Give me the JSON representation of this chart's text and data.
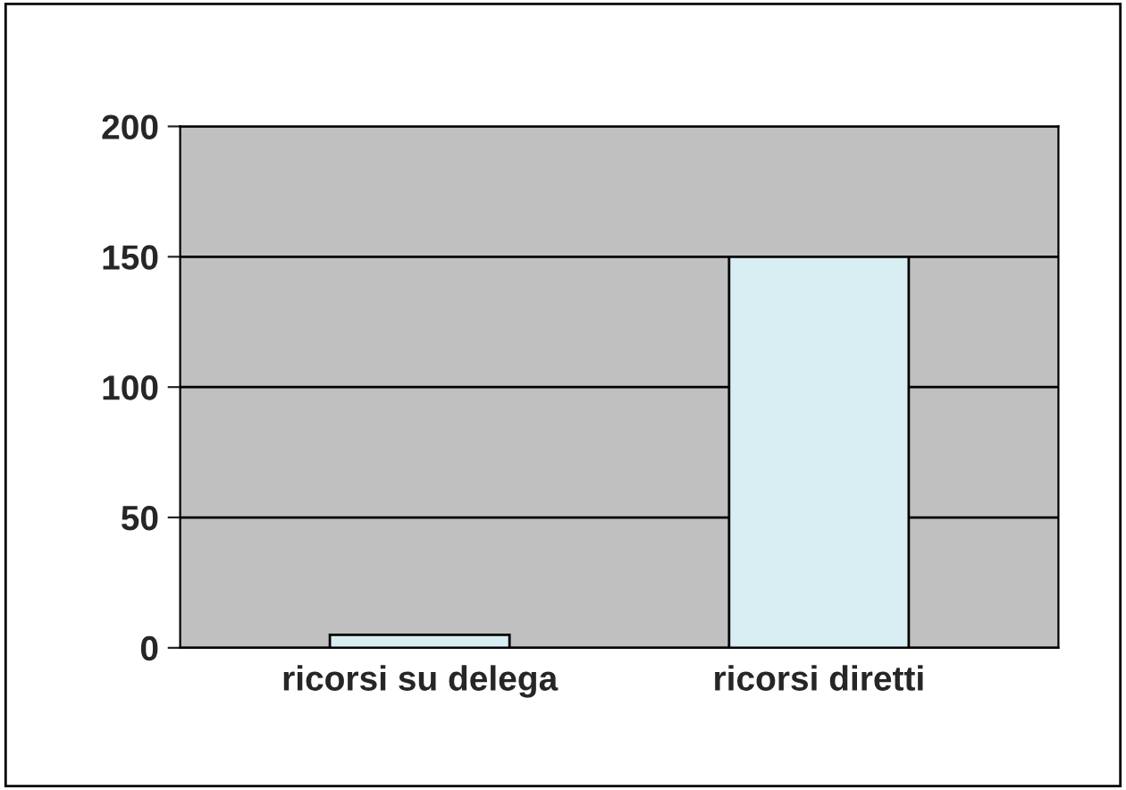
{
  "chart_data": {
    "type": "bar",
    "categories": [
      "ricorsi su delega",
      "ricorsi diretti"
    ],
    "values": [
      5,
      150
    ],
    "color": "#d9eef2",
    "ylim": [
      0,
      200
    ],
    "yticks": [
      0,
      50,
      100,
      150,
      200
    ],
    "grid": "y"
  }
}
